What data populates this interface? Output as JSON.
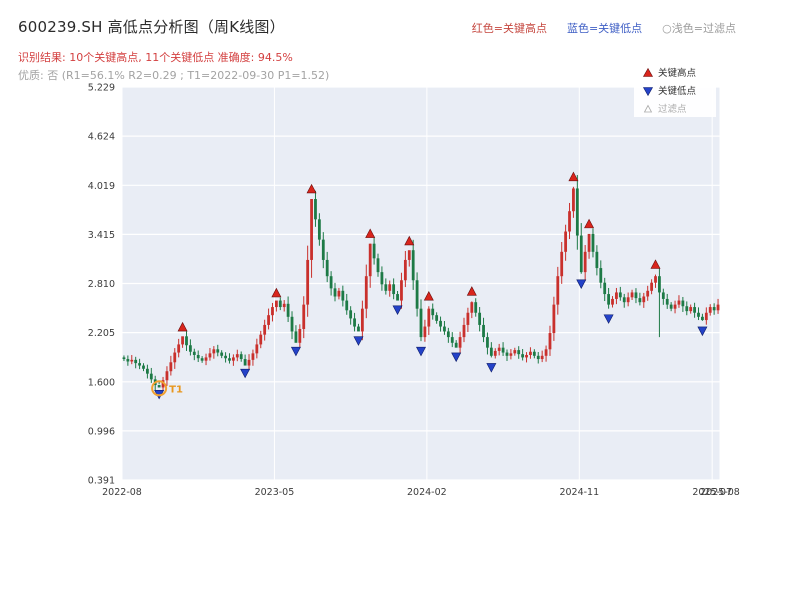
{
  "header": {
    "title": "600239.SH 高低点分析图（周K线图）",
    "legend_top": [
      {
        "label": "红色=关键高点",
        "color": "#c5473f"
      },
      {
        "label": "蓝色=关键低点",
        "color": "#3f5fc5"
      },
      {
        "label": "○浅色=过滤点",
        "color": "#9a9a9a"
      }
    ],
    "result_line": "识别结果: 10个关键高点, 11个关键低点  准确度: 94.5%",
    "quality_line": "优质: 否 (R1=56.1%  R2=0.29 ; T1=2022-09-30 P1=1.52)"
  },
  "chart_data": {
    "type": "candlestick",
    "title": "600239.SH 高低点分析图（周K线图）",
    "grid": true,
    "legend_position": "upper right",
    "weeks": 153,
    "ylim": [
      0.391,
      5.229
    ],
    "y_ticks": [
      5.229,
      4.624,
      4.019,
      3.415,
      2.81,
      2.205,
      1.6,
      0.996,
      0.391
    ],
    "x_ticks": [
      {
        "label": "2022-08",
        "week": 0
      },
      {
        "label": "2023-05",
        "week": 39
      },
      {
        "label": "2024-02",
        "week": 78
      },
      {
        "label": "2024-11",
        "week": 117
      },
      {
        "label": "2025-07",
        "week": 151
      },
      {
        "label": "2025-08",
        "week": 153
      }
    ],
    "closes": [
      1.88,
      1.85,
      1.87,
      1.83,
      1.8,
      1.76,
      1.7,
      1.63,
      1.56,
      1.53,
      1.62,
      1.73,
      1.84,
      1.96,
      2.06,
      2.16,
      2.05,
      1.97,
      1.93,
      1.89,
      1.86,
      1.9,
      1.95,
      2.0,
      1.96,
      1.92,
      1.89,
      1.86,
      1.9,
      1.94,
      1.88,
      1.8,
      1.87,
      1.95,
      2.06,
      2.18,
      2.3,
      2.42,
      2.52,
      2.6,
      2.52,
      2.56,
      2.4,
      2.22,
      2.08,
      2.25,
      2.55,
      3.1,
      3.85,
      3.6,
      3.35,
      3.1,
      2.9,
      2.75,
      2.65,
      2.72,
      2.6,
      2.48,
      2.38,
      2.28,
      2.22,
      2.5,
      2.9,
      3.3,
      3.12,
      2.95,
      2.8,
      2.72,
      2.8,
      2.68,
      2.6,
      2.85,
      3.1,
      3.22,
      2.85,
      2.5,
      2.15,
      2.28,
      2.5,
      2.42,
      2.35,
      2.28,
      2.22,
      2.15,
      2.08,
      2.02,
      2.15,
      2.3,
      2.45,
      2.58,
      2.45,
      2.3,
      2.15,
      2.02,
      1.92,
      1.98,
      2.02,
      1.96,
      1.92,
      1.95,
      1.99,
      1.94,
      1.9,
      1.93,
      1.97,
      1.92,
      1.88,
      1.92,
      2.0,
      2.2,
      2.55,
      2.9,
      3.2,
      3.45,
      3.7,
      3.98,
      3.4,
      2.95,
      3.2,
      3.42,
      3.2,
      3.0,
      2.82,
      2.68,
      2.55,
      2.62,
      2.7,
      2.64,
      2.58,
      2.64,
      2.7,
      2.63,
      2.58,
      2.65,
      2.72,
      2.82,
      2.9,
      2.7,
      2.62,
      2.55,
      2.5,
      2.55,
      2.6,
      2.53,
      2.47,
      2.52,
      2.45,
      2.4,
      2.36,
      2.45,
      2.52,
      2.48,
      2.55
    ],
    "key_highs": [
      {
        "week": 15,
        "price": 2.2
      },
      {
        "week": 39,
        "price": 2.62
      },
      {
        "week": 48,
        "price": 3.9
      },
      {
        "week": 63,
        "price": 3.35
      },
      {
        "week": 73,
        "price": 3.26
      },
      {
        "week": 78,
        "price": 2.58
      },
      {
        "week": 89,
        "price": 2.64
      },
      {
        "week": 115,
        "price": 4.05
      },
      {
        "week": 119,
        "price": 3.47
      },
      {
        "week": 136,
        "price": 2.97
      }
    ],
    "key_lows": [
      {
        "week": 9,
        "price": 1.52
      },
      {
        "week": 31,
        "price": 1.78
      },
      {
        "week": 44,
        "price": 2.05
      },
      {
        "week": 60,
        "price": 2.18
      },
      {
        "week": 70,
        "price": 2.56
      },
      {
        "week": 76,
        "price": 2.05
      },
      {
        "week": 85,
        "price": 1.98
      },
      {
        "week": 94,
        "price": 1.85
      },
      {
        "week": 117,
        "price": 2.88
      },
      {
        "week": 124,
        "price": 2.45
      },
      {
        "week": 148,
        "price": 2.3
      }
    ],
    "wick_low_overrides": [
      {
        "week": 137,
        "low": 2.15
      }
    ],
    "t1": {
      "label": "T1",
      "date": "2022-09-30",
      "week": 9,
      "price": 1.52
    },
    "legend": [
      {
        "label": "关键高点"
      },
      {
        "label": "关键低点"
      },
      {
        "label": "过滤点"
      }
    ],
    "colors": {
      "up": "#c9302c",
      "down": "#1d7a46",
      "plot_bg": "#e9edf5",
      "grid": "#ffffff",
      "high_marker": "#d9251c",
      "low_marker": "#2442c8",
      "t1": "#f0a030"
    }
  }
}
